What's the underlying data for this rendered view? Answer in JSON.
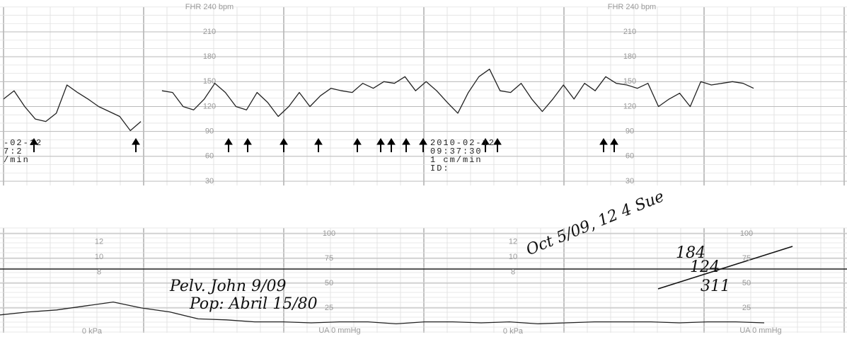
{
  "header": {
    "fhr_label": "FHR 240 bpm",
    "ua_label": "UA 0 mmHg",
    "kpa_label": "0 kPa"
  },
  "fhr_scale": [
    210,
    180,
    150,
    120,
    90,
    60,
    30
  ],
  "ua_scale": [
    100,
    75,
    50,
    25
  ],
  "kpa_scale": [
    12,
    10,
    8
  ],
  "fhr_trace": [
    129,
    139,
    120,
    105,
    102,
    112,
    146,
    137,
    129,
    120,
    114,
    108,
    91,
    102,
    null,
    139,
    137,
    120,
    116,
    129,
    148,
    137,
    120,
    116,
    137,
    125,
    108,
    120,
    137,
    120,
    133,
    142,
    139,
    137,
    148,
    142,
    150,
    148,
    156,
    139,
    150,
    139,
    125,
    112,
    137,
    156,
    165,
    139,
    137,
    148,
    129,
    114,
    129,
    146,
    129,
    148,
    139,
    156,
    148,
    146,
    142,
    148,
    120,
    129,
    136,
    120,
    150,
    146,
    148,
    150,
    148,
    142
  ],
  "ua_trace": [
    18,
    21,
    23,
    27,
    31,
    25,
    21,
    14,
    13,
    11,
    11,
    10,
    11,
    11,
    9,
    11,
    11,
    10,
    11,
    9,
    10,
    11,
    11,
    11,
    10,
    11,
    11,
    10
  ],
  "printout_left": {
    "date": "-02-12",
    "time": "7:2",
    "speed": "/min"
  },
  "printout_right": {
    "date": "2010-02-12",
    "time": "09:37:30",
    "speed": "1 cm/min",
    "id": "ID:"
  },
  "handwriting": {
    "signature": "Oct 5/09, 12 4 Sue",
    "line1": "Pelv. John 9/09",
    "line2": "Pop: Abril 15/80",
    "n1": "184",
    "n2": "124",
    "n3": "311"
  }
}
